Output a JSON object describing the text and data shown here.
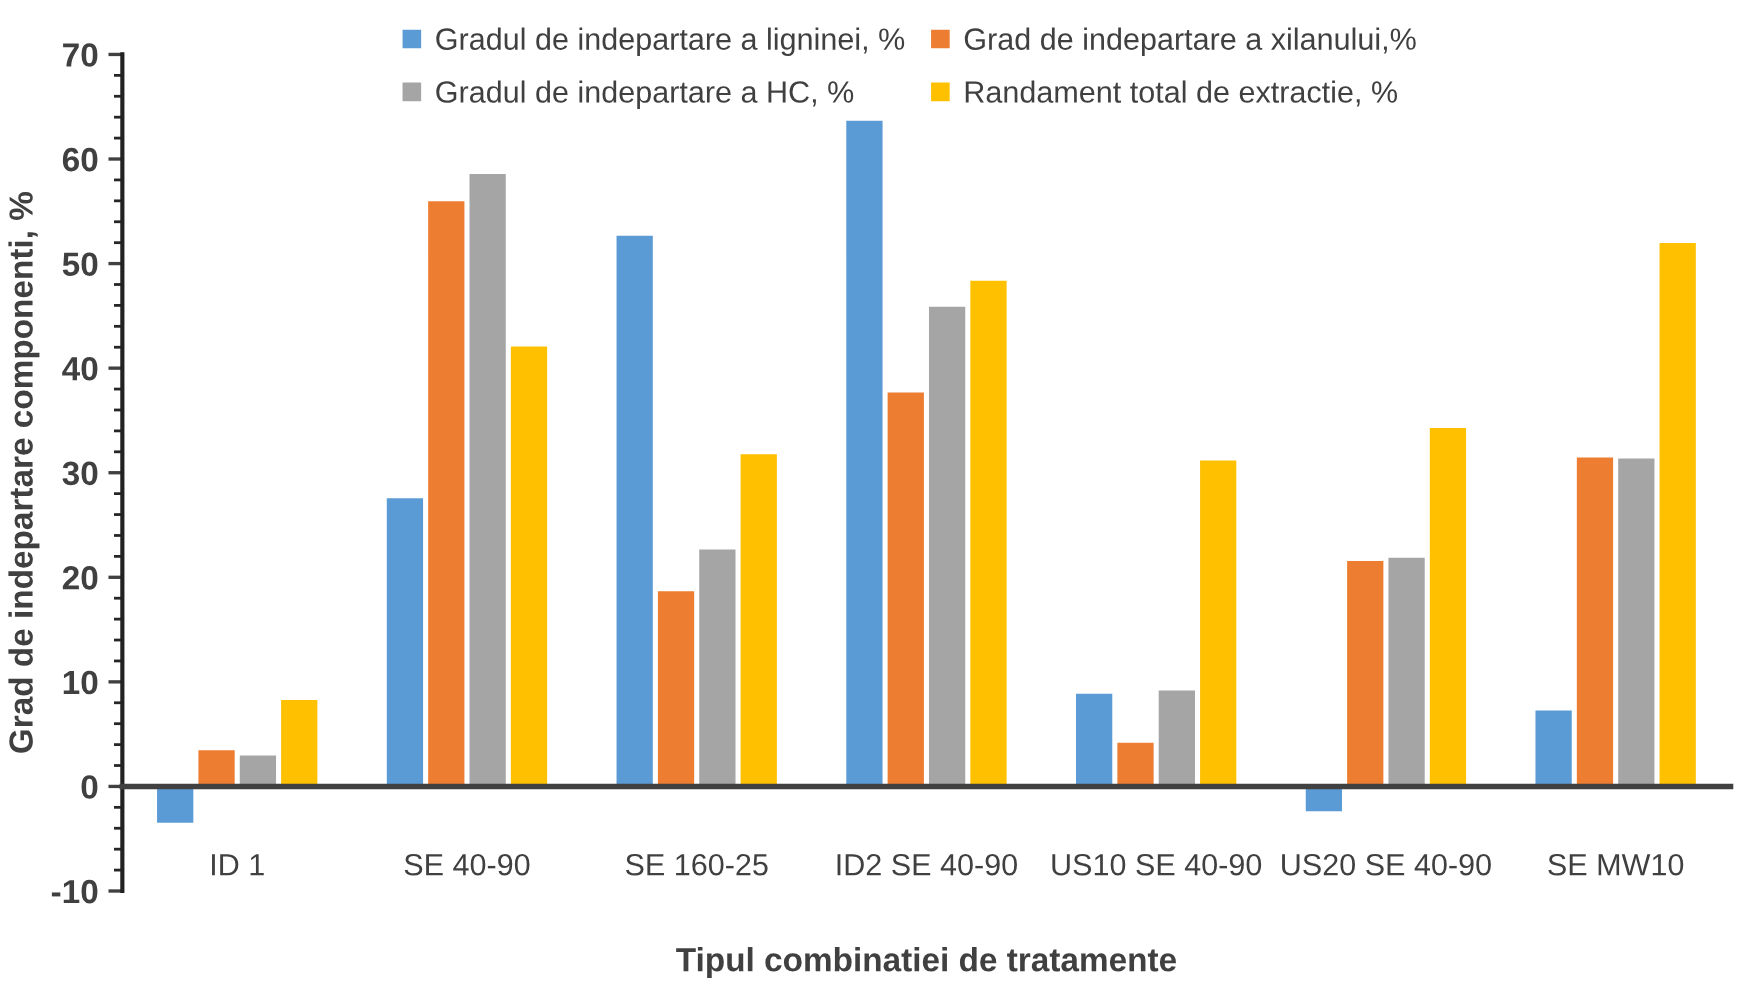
{
  "chart_data": {
    "type": "bar",
    "xlabel": "Tipul combinatiei de tratamente",
    "ylabel": "Grad de indepartare componenti, %",
    "categories": [
      "ID 1",
      "SE 40-90",
      "SE 160-25",
      "ID2 SE 40-90",
      "US10 SE 40-90",
      "US20 SE 40-90",
      "SE MW10"
    ],
    "series": [
      {
        "name": "Gradul de indepartare a ligninei, %",
        "color": "#5b9bd5",
        "values": [
          -3.6,
          27.7,
          52.8,
          63.8,
          9.0,
          -2.5,
          7.4
        ]
      },
      {
        "name": "Grad de indepartare a xilanului,%",
        "color": "#ed7d31",
        "values": [
          3.6,
          56.1,
          18.8,
          37.8,
          4.3,
          21.7,
          31.6
        ]
      },
      {
        "name": "Gradul de indepartare a HC, %",
        "color": "#a5a5a5",
        "values": [
          3.1,
          58.7,
          22.8,
          46.0,
          9.3,
          22.0,
          31.5
        ]
      },
      {
        "name": "Randament total de extractie, %",
        "color": "#ffc000",
        "values": [
          8.4,
          42.2,
          31.9,
          48.5,
          31.3,
          34.4,
          52.1
        ]
      }
    ],
    "ylim": [
      -10,
      70
    ],
    "yticks": [
      -10,
      0,
      10,
      20,
      30,
      40,
      50,
      60,
      70
    ],
    "grid": false,
    "legend": "top"
  }
}
